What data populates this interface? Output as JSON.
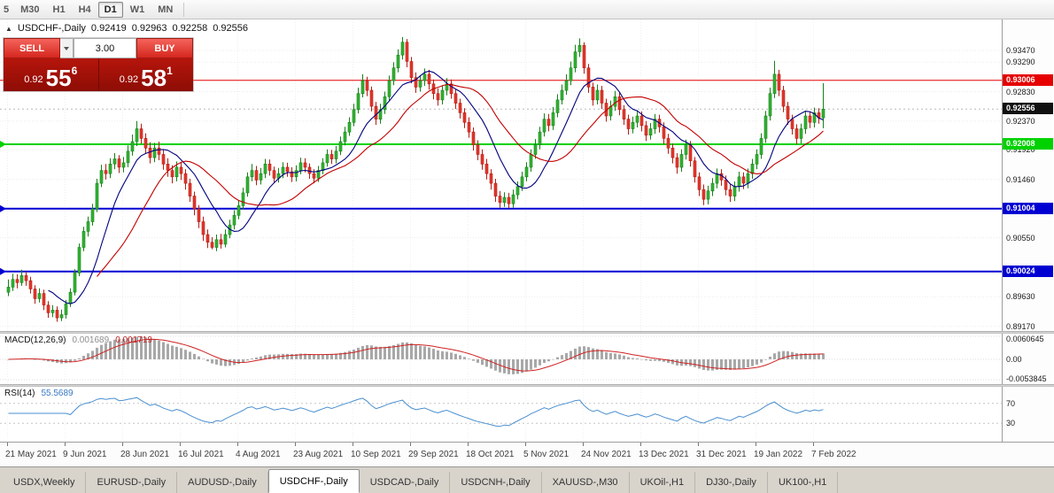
{
  "toolbar": {
    "periods": [
      {
        "label": "5",
        "active": false
      },
      {
        "label": "M30",
        "active": false
      },
      {
        "label": "H1",
        "active": false
      },
      {
        "label": "H4",
        "active": false
      },
      {
        "label": "D1",
        "active": true
      },
      {
        "label": "W1",
        "active": false
      },
      {
        "label": "MN",
        "active": false
      }
    ]
  },
  "chart": {
    "collapse_glyph": "▲",
    "symbol_period": "USDCHF-,Daily",
    "open": "0.92419",
    "high": "0.92963",
    "low": "0.92258",
    "close": "0.92556"
  },
  "trade_panel": {
    "sell_label": "SELL",
    "buy_label": "BUY",
    "volume": "3.00",
    "bid": {
      "prefix": "0.92",
      "big": "55",
      "pip": "6"
    },
    "ask": {
      "prefix": "0.92",
      "big": "58",
      "pip": "1"
    }
  },
  "macd": {
    "label": "MACD(12,26,9)",
    "fast": 12,
    "slow": 26,
    "signal": 9,
    "value_main": "0.001689",
    "value_signal": "0.001719",
    "scale": {
      "top": "0.0060645",
      "mid": "0.00",
      "bottom": "-0.0053845"
    },
    "colors": {
      "histogram": "#a8a8a8",
      "signal": "#cf2222"
    }
  },
  "rsi": {
    "label": "RSI(14)",
    "period": 14,
    "value": "55.5689",
    "levels": [
      "70",
      "30"
    ],
    "color": "#4a8fd0"
  },
  "tabs": [
    {
      "label": "USDX,Weekly",
      "active": false
    },
    {
      "label": "EURUSD-,Daily",
      "active": false
    },
    {
      "label": "AUDUSD-,Daily",
      "active": false
    },
    {
      "label": "USDCHF-,Daily",
      "active": true
    },
    {
      "label": "USDCAD-,Daily",
      "active": false
    },
    {
      "label": "USDCNH-,Daily",
      "active": false
    },
    {
      "label": "XAUUSD-,M30",
      "active": false
    },
    {
      "label": "UKOil-,H1",
      "active": false
    },
    {
      "label": "DJ30-,Daily",
      "active": false
    },
    {
      "label": "UK100-,H1",
      "active": false
    }
  ],
  "chart_data": {
    "type": "candlestick",
    "symbol": "USDCHF-",
    "timeframe": "Daily",
    "price_scale": 1e-05,
    "price_top": 0.939,
    "price_bottom": 0.8915,
    "gridlines": [
      "0.93470",
      "0.93290",
      "0.92830",
      "0.92370",
      "0.91920",
      "0.91460",
      "0.90550",
      "0.89630",
      "0.89170"
    ],
    "hlines": [
      {
        "value": 0.93006,
        "color": "#e60000",
        "width": 1,
        "badge": "0.93006",
        "marker": false
      },
      {
        "value": 0.92008,
        "color": "#00d200",
        "width": 2,
        "badge": "0.92008",
        "marker": true
      },
      {
        "value": 0.91004,
        "color": "#0000d2",
        "width": 2,
        "badge": "0.91004",
        "marker": true
      },
      {
        "value": 0.90024,
        "color": "#0000d2",
        "width": 2,
        "badge": "0.90024",
        "marker": true
      }
    ],
    "current_price": {
      "value": 0.92556,
      "badge": "0.92556",
      "color": "#111111"
    },
    "colors": {
      "up_fill": "#30b430",
      "up_stroke": "#17801a",
      "down_fill": "#e6352b",
      "down_stroke": "#b01f17"
    },
    "moving_averages": [
      {
        "period": 10,
        "color": "#00007f"
      },
      {
        "period": 21,
        "color": "#c40000"
      }
    ],
    "date_labels": [
      {
        "label": "21 May 2021",
        "index": 0
      },
      {
        "label": "9 Jun 2021",
        "index": 13
      },
      {
        "label": "28 Jun 2021",
        "index": 26
      },
      {
        "label": "16 Jul 2021",
        "index": 39
      },
      {
        "label": "4 Aug 2021",
        "index": 52
      },
      {
        "label": "23 Aug 2021",
        "index": 65
      },
      {
        "label": "10 Sep 2021",
        "index": 78
      },
      {
        "label": "29 Sep 2021",
        "index": 91
      },
      {
        "label": "18 Oct 2021",
        "index": 104
      },
      {
        "label": "5 Nov 2021",
        "index": 117
      },
      {
        "label": "24 Nov 2021",
        "index": 130
      },
      {
        "label": "13 Dec 2021",
        "index": 143
      },
      {
        "label": "31 Dec 2021",
        "index": 156
      },
      {
        "label": "19 Jan 2022",
        "index": 169
      },
      {
        "label": "7 Feb 2022",
        "index": 182
      }
    ],
    "candles": [
      [
        89700,
        89900,
        89640,
        89780
      ],
      [
        89780,
        89990,
        89720,
        89900
      ],
      [
        89900,
        89980,
        89760,
        89850
      ],
      [
        89850,
        90050,
        89800,
        89960
      ],
      [
        89960,
        90020,
        89800,
        89880
      ],
      [
        89880,
        89940,
        89680,
        89750
      ],
      [
        89750,
        89810,
        89520,
        89600
      ],
      [
        89600,
        89760,
        89540,
        89680
      ],
      [
        89680,
        89740,
        89420,
        89500
      ],
      [
        89500,
        89560,
        89300,
        89380
      ],
      [
        89380,
        89500,
        89310,
        89420
      ],
      [
        89420,
        89480,
        89240,
        89300
      ],
      [
        89300,
        89430,
        89250,
        89350
      ],
      [
        89350,
        89580,
        89290,
        89520
      ],
      [
        89520,
        89760,
        89470,
        89700
      ],
      [
        89700,
        90060,
        89650,
        90000
      ],
      [
        90000,
        90460,
        89950,
        90400
      ],
      [
        90400,
        90720,
        90340,
        90650
      ],
      [
        90650,
        90880,
        90570,
        90800
      ],
      [
        90800,
        91080,
        90740,
        91000
      ],
      [
        91000,
        91470,
        90950,
        91400
      ],
      [
        91400,
        91690,
        91340,
        91600
      ],
      [
        91600,
        91700,
        91460,
        91550
      ],
      [
        91550,
        91790,
        91480,
        91700
      ],
      [
        91700,
        91870,
        91620,
        91780
      ],
      [
        91780,
        91840,
        91560,
        91650
      ],
      [
        91650,
        91810,
        91570,
        91720
      ],
      [
        91720,
        91990,
        91650,
        91900
      ],
      [
        91900,
        92160,
        91830,
        92050
      ],
      [
        92050,
        92370,
        91980,
        92250
      ],
      [
        92250,
        92330,
        92020,
        92100
      ],
      [
        92100,
        92180,
        91860,
        91950
      ],
      [
        91950,
        92040,
        91710,
        91800
      ],
      [
        91800,
        92030,
        91730,
        91950
      ],
      [
        91950,
        92050,
        91760,
        91850
      ],
      [
        91850,
        91920,
        91610,
        91700
      ],
      [
        91700,
        91790,
        91500,
        91600
      ],
      [
        91600,
        91680,
        91400,
        91500
      ],
      [
        91500,
        91740,
        91430,
        91650
      ],
      [
        91650,
        91730,
        91450,
        91550
      ],
      [
        91550,
        91620,
        91300,
        91400
      ],
      [
        91400,
        91470,
        91110,
        91200
      ],
      [
        91200,
        91270,
        90900,
        91000
      ],
      [
        91000,
        91060,
        90700,
        90800
      ],
      [
        90800,
        90880,
        90500,
        90600
      ],
      [
        90600,
        90680,
        90390,
        90480
      ],
      [
        90480,
        90560,
        90370,
        90400
      ],
      [
        90400,
        90600,
        90340,
        90520
      ],
      [
        90520,
        90610,
        90380,
        90450
      ],
      [
        90450,
        90680,
        90400,
        90600
      ],
      [
        90600,
        90830,
        90540,
        90750
      ],
      [
        90750,
        90980,
        90680,
        90900
      ],
      [
        90900,
        91140,
        90840,
        91050
      ],
      [
        91050,
        91330,
        90990,
        91250
      ],
      [
        91250,
        91570,
        91190,
        91500
      ],
      [
        91500,
        91700,
        91430,
        91600
      ],
      [
        91600,
        91670,
        91370,
        91450
      ],
      [
        91450,
        91640,
        91380,
        91550
      ],
      [
        91550,
        91780,
        91480,
        91700
      ],
      [
        91700,
        91770,
        91520,
        91600
      ],
      [
        91600,
        91660,
        91400,
        91480
      ],
      [
        91480,
        91640,
        91410,
        91550
      ],
      [
        91550,
        91730,
        91480,
        91650
      ],
      [
        91650,
        91720,
        91500,
        91580
      ],
      [
        91580,
        91650,
        91420,
        91500
      ],
      [
        91500,
        91680,
        91430,
        91600
      ],
      [
        91600,
        91800,
        91540,
        91720
      ],
      [
        91720,
        91790,
        91570,
        91650
      ],
      [
        91650,
        91710,
        91470,
        91550
      ],
      [
        91550,
        91620,
        91400,
        91480
      ],
      [
        91480,
        91670,
        91420,
        91600
      ],
      [
        91600,
        91790,
        91540,
        91720
      ],
      [
        91720,
        91930,
        91660,
        91850
      ],
      [
        91850,
        91920,
        91700,
        91780
      ],
      [
        91780,
        91980,
        91710,
        91900
      ],
      [
        91900,
        92130,
        91840,
        92050
      ],
      [
        92050,
        92280,
        91990,
        92200
      ],
      [
        92200,
        92430,
        92140,
        92350
      ],
      [
        92350,
        92640,
        92290,
        92550
      ],
      [
        92550,
        92890,
        92490,
        92800
      ],
      [
        92800,
        93100,
        92740,
        93000
      ],
      [
        93000,
        93060,
        92760,
        92850
      ],
      [
        92850,
        92910,
        92520,
        92600
      ],
      [
        92600,
        92670,
        92310,
        92400
      ],
      [
        92400,
        92640,
        92330,
        92550
      ],
      [
        92550,
        92830,
        92480,
        92750
      ],
      [
        92750,
        93080,
        92690,
        93000
      ],
      [
        93000,
        93290,
        92930,
        93200
      ],
      [
        93200,
        93490,
        93130,
        93400
      ],
      [
        93400,
        93680,
        93330,
        93600
      ],
      [
        93600,
        93650,
        93210,
        93300
      ],
      [
        93300,
        93370,
        92960,
        93050
      ],
      [
        93050,
        93130,
        92810,
        92900
      ],
      [
        92900,
        93090,
        92830,
        93000
      ],
      [
        93000,
        93190,
        92920,
        93100
      ],
      [
        93100,
        93170,
        92860,
        92950
      ],
      [
        92950,
        93020,
        92710,
        92800
      ],
      [
        92800,
        92880,
        92610,
        92700
      ],
      [
        92700,
        92930,
        92630,
        92850
      ],
      [
        92850,
        93040,
        92770,
        92950
      ],
      [
        92950,
        93020,
        92720,
        92800
      ],
      [
        92800,
        92870,
        92560,
        92650
      ],
      [
        92650,
        92720,
        92410,
        92500
      ],
      [
        92500,
        92570,
        92260,
        92350
      ],
      [
        92350,
        92430,
        92110,
        92200
      ],
      [
        92200,
        92270,
        91910,
        92000
      ],
      [
        92000,
        92070,
        91760,
        91850
      ],
      [
        91850,
        91930,
        91610,
        91700
      ],
      [
        91700,
        91780,
        91460,
        91550
      ],
      [
        91550,
        91620,
        91300,
        91400
      ],
      [
        91400,
        91470,
        91110,
        91200
      ],
      [
        91200,
        91280,
        91020,
        91100
      ],
      [
        91100,
        91260,
        91030,
        91180
      ],
      [
        91180,
        91250,
        91010,
        91080
      ],
      [
        91080,
        91300,
        91020,
        91220
      ],
      [
        91220,
        91430,
        91150,
        91350
      ],
      [
        91350,
        91580,
        91280,
        91500
      ],
      [
        91500,
        91730,
        91430,
        91650
      ],
      [
        91650,
        91930,
        91580,
        91850
      ],
      [
        91850,
        92090,
        91780,
        92000
      ],
      [
        92000,
        92280,
        91930,
        92200
      ],
      [
        92200,
        92490,
        92130,
        92400
      ],
      [
        92400,
        92480,
        92210,
        92300
      ],
      [
        92300,
        92590,
        92230,
        92500
      ],
      [
        92500,
        92790,
        92430,
        92700
      ],
      [
        92700,
        92940,
        92630,
        92850
      ],
      [
        92850,
        93100,
        92780,
        93000
      ],
      [
        93000,
        93300,
        92930,
        93200
      ],
      [
        93200,
        93560,
        93130,
        93450
      ],
      [
        93450,
        93660,
        93370,
        93550
      ],
      [
        93550,
        93600,
        93110,
        93200
      ],
      [
        93200,
        93260,
        92810,
        92900
      ],
      [
        92900,
        92970,
        92610,
        92700
      ],
      [
        92700,
        92940,
        92630,
        92850
      ],
      [
        92850,
        92920,
        92560,
        92650
      ],
      [
        92650,
        92720,
        92360,
        92450
      ],
      [
        92450,
        92690,
        92380,
        92600
      ],
      [
        92600,
        92840,
        92530,
        92750
      ],
      [
        92750,
        92820,
        92460,
        92550
      ],
      [
        92550,
        92620,
        92310,
        92400
      ],
      [
        92400,
        92470,
        92160,
        92250
      ],
      [
        92250,
        92440,
        92180,
        92350
      ],
      [
        92350,
        92540,
        92270,
        92450
      ],
      [
        92450,
        92520,
        92210,
        92300
      ],
      [
        92300,
        92370,
        92060,
        92150
      ],
      [
        92150,
        92340,
        92080,
        92250
      ],
      [
        92250,
        92480,
        92170,
        92400
      ],
      [
        92400,
        92470,
        92190,
        92280
      ],
      [
        92280,
        92350,
        92010,
        92100
      ],
      [
        92100,
        92170,
        91860,
        91950
      ],
      [
        91950,
        92020,
        91710,
        91800
      ],
      [
        91800,
        91870,
        91550,
        91650
      ],
      [
        91650,
        91930,
        91580,
        91850
      ],
      [
        91850,
        92080,
        91770,
        92000
      ],
      [
        92000,
        92060,
        91660,
        91750
      ],
      [
        91750,
        91810,
        91410,
        91500
      ],
      [
        91500,
        91570,
        91200,
        91300
      ],
      [
        91300,
        91380,
        91060,
        91150
      ],
      [
        91150,
        91360,
        91070,
        91280
      ],
      [
        91280,
        91480,
        91200,
        91400
      ],
      [
        91400,
        91630,
        91320,
        91550
      ],
      [
        91550,
        91620,
        91360,
        91450
      ],
      [
        91450,
        91520,
        91210,
        91300
      ],
      [
        91300,
        91380,
        91110,
        91200
      ],
      [
        91200,
        91430,
        91120,
        91350
      ],
      [
        91350,
        91580,
        91270,
        91500
      ],
      [
        91500,
        91570,
        91310,
        91400
      ],
      [
        91400,
        91630,
        91320,
        91550
      ],
      [
        91550,
        91780,
        91470,
        91700
      ],
      [
        91700,
        91930,
        91620,
        91850
      ],
      [
        91850,
        92180,
        91780,
        92100
      ],
      [
        92100,
        92530,
        92030,
        92450
      ],
      [
        92450,
        92890,
        92380,
        92800
      ],
      [
        92800,
        93310,
        92730,
        93100
      ],
      [
        93100,
        93170,
        92760,
        92850
      ],
      [
        92850,
        92920,
        92510,
        92600
      ],
      [
        92600,
        92670,
        92310,
        92400
      ],
      [
        92400,
        92470,
        92160,
        92250
      ],
      [
        92250,
        92320,
        92010,
        92100
      ],
      [
        92100,
        92330,
        92020,
        92250
      ],
      [
        92250,
        92530,
        92170,
        92450
      ],
      [
        92450,
        92520,
        92260,
        92350
      ],
      [
        92350,
        92580,
        92270,
        92500
      ],
      [
        92500,
        92570,
        92330,
        92420
      ],
      [
        92419,
        92963,
        92258,
        92556
      ]
    ]
  }
}
